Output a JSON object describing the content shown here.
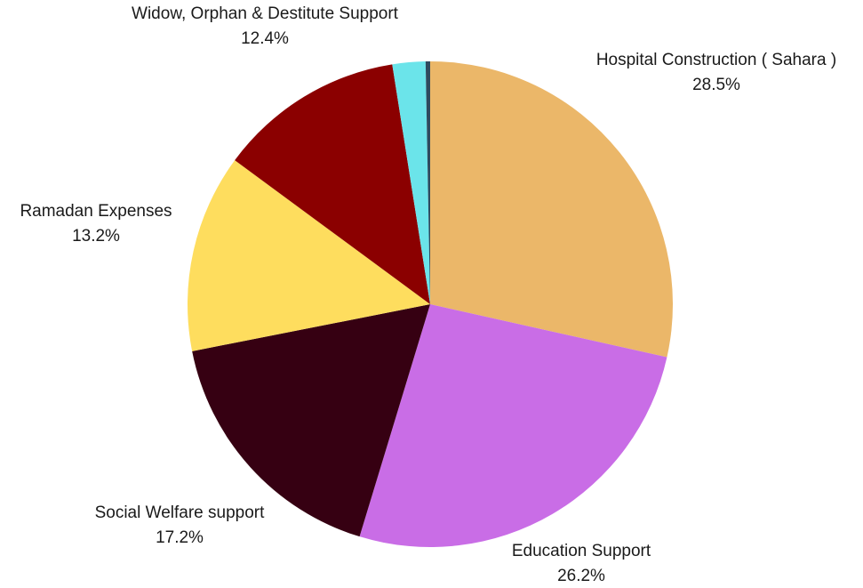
{
  "chart_data": {
    "type": "pie",
    "start_angle_deg": 0,
    "direction": "clockwise",
    "slices": [
      {
        "label": "Hospital Construction ( Sahara )",
        "percent_label": "28.5%",
        "value": 28.5,
        "color": "#EBB769"
      },
      {
        "label": "Education Support",
        "percent_label": "26.2%",
        "value": 26.2,
        "color": "#C96DE6"
      },
      {
        "label": "Social Welfare support",
        "percent_label": "17.2%",
        "value": 17.2,
        "color": "#360012"
      },
      {
        "label": "Ramadan Expenses",
        "percent_label": "13.2%",
        "value": 13.2,
        "color": "#FEDD5E"
      },
      {
        "label": "Widow, Orphan & Destitute Support",
        "percent_label": "12.4%",
        "value": 12.4,
        "color": "#8B0000"
      },
      {
        "label": "",
        "percent_label": "",
        "value": 2.2,
        "color": "#6BE4EA"
      },
      {
        "label": "",
        "percent_label": "",
        "value": 0.3,
        "color": "#2E4A5E"
      }
    ]
  }
}
